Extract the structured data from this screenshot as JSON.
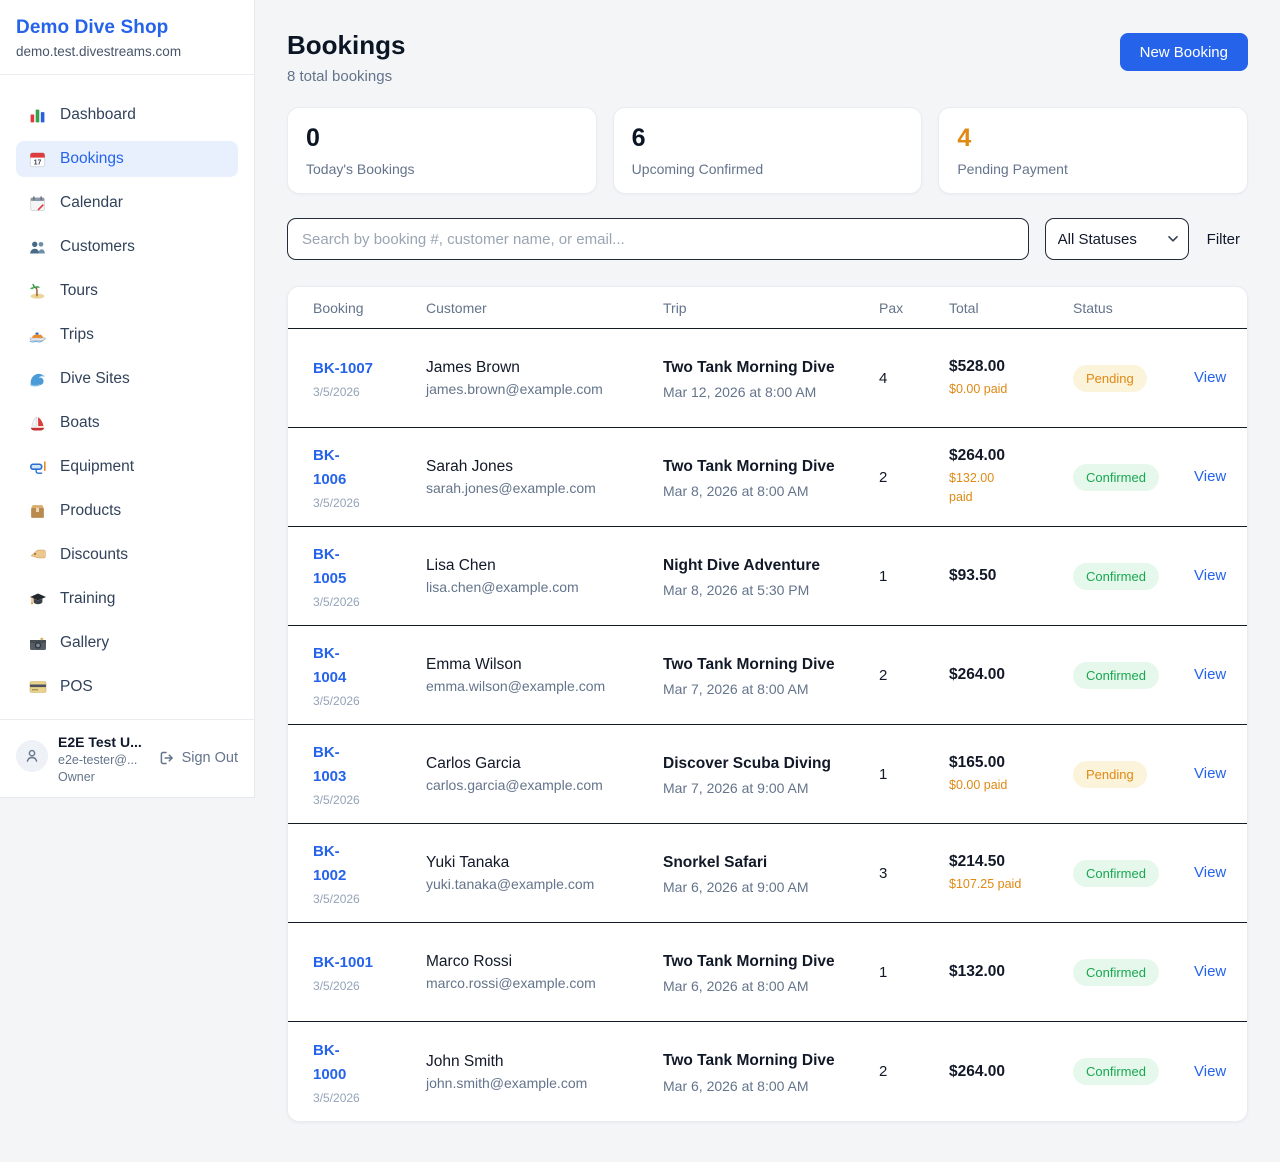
{
  "theme": {
    "brand_blue": "#2563eb",
    "accent_orange": "#e08914",
    "confirmed_green": "#18a851",
    "pending_badge_bg": "#fcf4da",
    "confirmed_badge_bg": "#e6f7ec",
    "page_bg": "#f4f5f7",
    "active_nav_bg": "#e8f0fe"
  },
  "sidebar": {
    "brand": "Demo Dive Shop",
    "domain": "demo.test.divestreams.com",
    "items": [
      {
        "icon": "bar-chart-icon",
        "label": "Dashboard",
        "active": false
      },
      {
        "icon": "calendar-icon",
        "label": "Bookings",
        "active": true
      },
      {
        "icon": "spiral-calendar-icon",
        "label": "Calendar",
        "active": false
      },
      {
        "icon": "customers-icon",
        "label": "Customers",
        "active": false
      },
      {
        "icon": "island-icon",
        "label": "Tours",
        "active": false
      },
      {
        "icon": "speedboat-icon",
        "label": "Trips",
        "active": false
      },
      {
        "icon": "wave-icon",
        "label": "Dive Sites",
        "active": false
      },
      {
        "icon": "sailboat-icon",
        "label": "Boats",
        "active": false
      },
      {
        "icon": "diving-mask-icon",
        "label": "Equipment",
        "active": false
      },
      {
        "icon": "package-icon",
        "label": "Products",
        "active": false
      },
      {
        "icon": "tag-icon",
        "label": "Discounts",
        "active": false
      },
      {
        "icon": "graduation-cap-icon",
        "label": "Training",
        "active": false
      },
      {
        "icon": "camera-icon",
        "label": "Gallery",
        "active": false
      },
      {
        "icon": "credit-card-icon",
        "label": "POS",
        "active": false
      }
    ],
    "user": {
      "name": "E2E Test U...",
      "email": "e2e-tester@...",
      "role": "Owner",
      "sign_out_label": "Sign Out"
    }
  },
  "header": {
    "title": "Bookings",
    "subtitle": "8 total bookings",
    "new_booking_label": "New Booking"
  },
  "stats": [
    {
      "value": "0",
      "label": "Today's Bookings"
    },
    {
      "value": "6",
      "label": "Upcoming Confirmed"
    },
    {
      "value": "4",
      "label": "Pending Payment",
      "accent": "orange"
    }
  ],
  "controls": {
    "search_placeholder": "Search by booking #, customer name, or email...",
    "status_filter": {
      "selected": "All Statuses"
    },
    "filter_label": "Filter"
  },
  "table": {
    "headers": [
      "Booking",
      "Customer",
      "Trip",
      "Pax",
      "Total",
      "Status"
    ],
    "view_label": "View",
    "rows": [
      {
        "number": "BK-1007",
        "booking_date": "3/5/2026",
        "customer": "James Brown",
        "email": "james.brown@example.com",
        "trip": "Two Tank Morning Dive",
        "trip_time": "Mar 12, 2026 at 8:00 AM",
        "pax": "4",
        "total": "$528.00",
        "paid": "$0.00 paid",
        "status": "Pending"
      },
      {
        "number": "BK-\n1006",
        "booking_date": "3/5/2026",
        "customer": "Sarah Jones",
        "email": "sarah.jones@example.com",
        "trip": "Two Tank Morning Dive",
        "trip_time": "Mar 8, 2026 at 8:00 AM",
        "pax": "2",
        "total": "$264.00",
        "paid": "$132.00\npaid",
        "status": "Confirmed"
      },
      {
        "number": "BK-\n1005",
        "booking_date": "3/5/2026",
        "customer": "Lisa Chen",
        "email": "lisa.chen@example.com",
        "trip": "Night Dive Adventure",
        "trip_time": "Mar 8, 2026 at 5:30 PM",
        "pax": "1",
        "total": "$93.50",
        "paid": null,
        "status": "Confirmed"
      },
      {
        "number": "BK-\n1004",
        "booking_date": "3/5/2026",
        "customer": "Emma Wilson",
        "email": "emma.wilson@example.com",
        "trip": "Two Tank Morning Dive",
        "trip_time": "Mar 7, 2026 at 8:00 AM",
        "pax": "2",
        "total": "$264.00",
        "paid": null,
        "status": "Confirmed"
      },
      {
        "number": "BK-\n1003",
        "booking_date": "3/5/2026",
        "customer": "Carlos Garcia",
        "email": "carlos.garcia@example.com",
        "trip": "Discover Scuba Diving",
        "trip_time": "Mar 7, 2026 at 9:00 AM",
        "pax": "1",
        "total": "$165.00",
        "paid": "$0.00 paid",
        "status": "Pending"
      },
      {
        "number": "BK-\n1002",
        "booking_date": "3/5/2026",
        "customer": "Yuki Tanaka",
        "email": "yuki.tanaka@example.com",
        "trip": "Snorkel Safari",
        "trip_time": "Mar 6, 2026 at 9:00 AM",
        "pax": "3",
        "total": "$214.50",
        "paid": "$107.25 paid",
        "status": "Confirmed"
      },
      {
        "number": "BK-1001",
        "booking_date": "3/5/2026",
        "customer": "Marco Rossi",
        "email": "marco.rossi@example.com",
        "trip": "Two Tank Morning Dive",
        "trip_time": "Mar 6, 2026 at 8:00 AM",
        "pax": "1",
        "total": "$132.00",
        "paid": null,
        "status": "Confirmed"
      },
      {
        "number": "BK-\n1000",
        "booking_date": "3/5/2026",
        "customer": "John Smith",
        "email": "john.smith@example.com",
        "trip": "Two Tank Morning Dive",
        "trip_time": "Mar 6, 2026 at 8:00 AM",
        "pax": "2",
        "total": "$264.00",
        "paid": null,
        "status": "Confirmed"
      }
    ]
  }
}
